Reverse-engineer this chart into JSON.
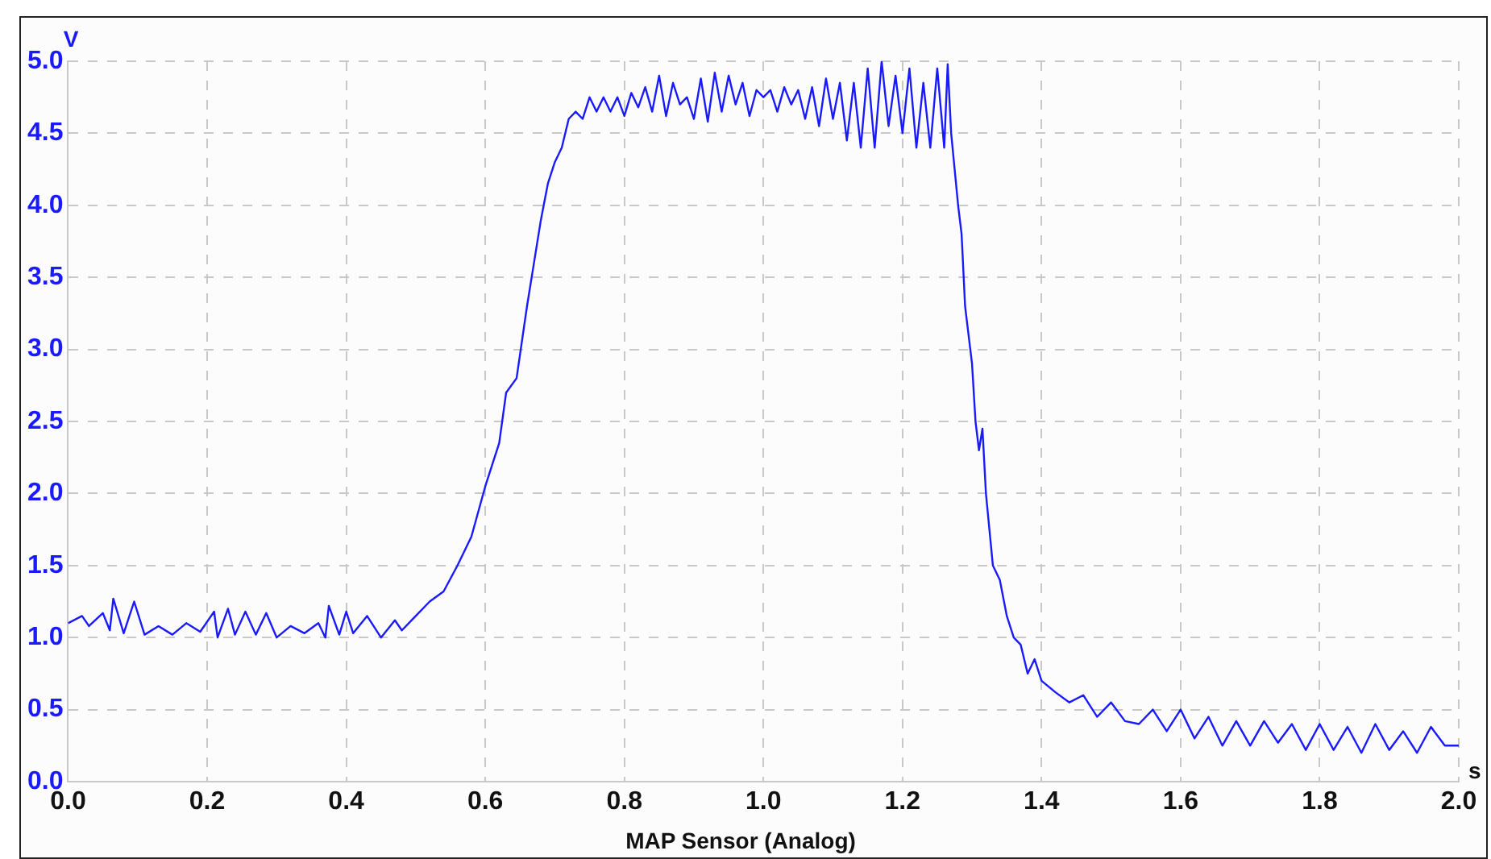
{
  "chart_data": {
    "type": "line",
    "title": "MAP Sensor (Analog)",
    "xlabel": "s",
    "ylabel": "V",
    "color": "#1a1aff",
    "grid": true,
    "xlim": [
      0,
      2
    ],
    "ylim": [
      0,
      5
    ],
    "xticks": [
      {
        "value": 0,
        "label": "0.0"
      },
      {
        "value": 0.2,
        "label": "0.2"
      },
      {
        "value": 0.4,
        "label": "0.4"
      },
      {
        "value": 0.6,
        "label": "0.6"
      },
      {
        "value": 0.8,
        "label": "0.8"
      },
      {
        "value": 1,
        "label": "1.0"
      },
      {
        "value": 1.2,
        "label": "1.2"
      },
      {
        "value": 1.4,
        "label": "1.4"
      },
      {
        "value": 1.6,
        "label": "1.6"
      },
      {
        "value": 1.8,
        "label": "1.8"
      },
      {
        "value": 2,
        "label": "2.0"
      }
    ],
    "yticks": [
      {
        "value": 0,
        "label": "0.0"
      },
      {
        "value": 0.5,
        "label": "0.5"
      },
      {
        "value": 1,
        "label": "1.0"
      },
      {
        "value": 1.5,
        "label": "1.5"
      },
      {
        "value": 2,
        "label": "2.0"
      },
      {
        "value": 2.5,
        "label": "2.5"
      },
      {
        "value": 3,
        "label": "3.0"
      },
      {
        "value": 3.5,
        "label": "3.5"
      },
      {
        "value": 4,
        "label": "4.0"
      },
      {
        "value": 4.5,
        "label": "4.5"
      },
      {
        "value": 5,
        "label": "5.0"
      }
    ],
    "x": [
      0,
      0.02,
      0.03,
      0.05,
      0.06,
      0.065,
      0.08,
      0.095,
      0.11,
      0.13,
      0.15,
      0.17,
      0.19,
      0.21,
      0.215,
      0.23,
      0.24,
      0.255,
      0.27,
      0.285,
      0.3,
      0.32,
      0.34,
      0.36,
      0.37,
      0.375,
      0.39,
      0.4,
      0.41,
      0.43,
      0.45,
      0.47,
      0.48,
      0.5,
      0.52,
      0.54,
      0.56,
      0.58,
      0.6,
      0.62,
      0.63,
      0.645,
      0.66,
      0.67,
      0.68,
      0.69,
      0.7,
      0.71,
      0.72,
      0.73,
      0.74,
      0.75,
      0.76,
      0.77,
      0.78,
      0.79,
      0.8,
      0.81,
      0.82,
      0.83,
      0.84,
      0.85,
      0.86,
      0.87,
      0.88,
      0.89,
      0.9,
      0.91,
      0.92,
      0.93,
      0.94,
      0.95,
      0.96,
      0.97,
      0.98,
      0.99,
      1,
      1.01,
      1.02,
      1.03,
      1.04,
      1.05,
      1.06,
      1.07,
      1.08,
      1.09,
      1.1,
      1.11,
      1.12,
      1.13,
      1.14,
      1.15,
      1.16,
      1.17,
      1.18,
      1.19,
      1.2,
      1.21,
      1.22,
      1.23,
      1.24,
      1.25,
      1.26,
      1.265,
      1.27,
      1.28,
      1.285,
      1.29,
      1.3,
      1.305,
      1.31,
      1.315,
      1.32,
      1.33,
      1.34,
      1.35,
      1.36,
      1.37,
      1.38,
      1.39,
      1.4,
      1.42,
      1.44,
      1.46,
      1.48,
      1.5,
      1.52,
      1.54,
      1.56,
      1.58,
      1.6,
      1.62,
      1.64,
      1.66,
      1.68,
      1.7,
      1.72,
      1.74,
      1.76,
      1.78,
      1.8,
      1.82,
      1.84,
      1.86,
      1.88,
      1.9,
      1.92,
      1.94,
      1.96,
      1.98,
      2
    ],
    "values": [
      1.1,
      1.15,
      1.08,
      1.17,
      1.05,
      1.27,
      1.03,
      1.25,
      1.02,
      1.08,
      1.02,
      1.1,
      1.04,
      1.18,
      1,
      1.2,
      1.02,
      1.18,
      1.02,
      1.17,
      1,
      1.08,
      1.03,
      1.1,
      1,
      1.22,
      1.02,
      1.18,
      1.03,
      1.15,
      1,
      1.12,
      1.05,
      1.15,
      1.25,
      1.32,
      1.5,
      1.7,
      2.05,
      2.35,
      2.7,
      2.8,
      3.3,
      3.6,
      3.9,
      4.15,
      4.3,
      4.4,
      4.6,
      4.65,
      4.6,
      4.75,
      4.65,
      4.75,
      4.65,
      4.75,
      4.62,
      4.78,
      4.68,
      4.82,
      4.65,
      4.9,
      4.62,
      4.85,
      4.7,
      4.75,
      4.6,
      4.88,
      4.58,
      4.92,
      4.65,
      4.9,
      4.7,
      4.85,
      4.62,
      4.8,
      4.75,
      4.8,
      4.65,
      4.82,
      4.7,
      4.8,
      4.6,
      4.82,
      4.55,
      4.88,
      4.6,
      4.85,
      4.45,
      4.85,
      4.4,
      4.95,
      4.4,
      5,
      4.55,
      4.9,
      4.5,
      4.95,
      4.4,
      4.85,
      4.4,
      4.95,
      4.4,
      4.98,
      4.5,
      4,
      3.8,
      3.3,
      2.9,
      2.5,
      2.3,
      2.45,
      2,
      1.5,
      1.4,
      1.15,
      1,
      0.95,
      0.75,
      0.85,
      0.7,
      0.62,
      0.55,
      0.6,
      0.45,
      0.55,
      0.42,
      0.4,
      0.5,
      0.35,
      0.5,
      0.3,
      0.45,
      0.25,
      0.42,
      0.25,
      0.42,
      0.27,
      0.4,
      0.22,
      0.4,
      0.22,
      0.38,
      0.2,
      0.4,
      0.22,
      0.35,
      0.2,
      0.38,
      0.25,
      0.25
    ]
  }
}
